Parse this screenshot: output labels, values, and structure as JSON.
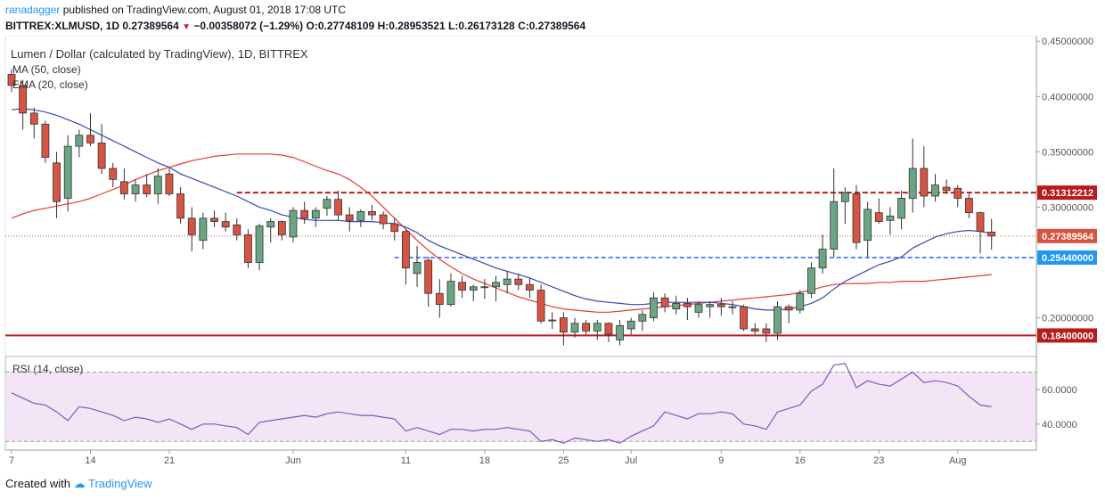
{
  "header": {
    "author": "ranadagger",
    "published_text": "published on TradingView.com, August 01, 2018 17:08 UTC",
    "symbol": "BITTREX:XLMUSD, 1D",
    "last": "0.27389564",
    "change": "−0.00358072 (−1.29%)",
    "open_label": "O:",
    "open": "0.27748109",
    "high_label": "H:",
    "high": "0.28953521",
    "low_label": "L:",
    "low": "0.26173128",
    "close_label": "C:",
    "close": "0.27389564"
  },
  "footer": {
    "created_with": "Created with",
    "brand": "TradingView"
  },
  "colors": {
    "up": "#6ba583",
    "down": "#d75442",
    "ma50": "#e53935",
    "ema20": "#3949ab",
    "rsi": "#7e57c2",
    "rsi_band": "#f3e5f5",
    "support": "#b71c1c",
    "resistance": "#b71c1c",
    "level_blue": "#2962ff",
    "level_blue_label": "#2196f3",
    "axis_text": "#555555"
  },
  "chart_data": {
    "type": "candlestick",
    "title": "Lumen / Dollar (calculated by TradingView), 1D, BITTREX",
    "series_legend": [
      "MA (50, close)",
      "EMA (20, close)"
    ],
    "ylim": [
      0.165,
      0.455
    ],
    "y_ticks": [
      {
        "v": 0.45,
        "label": "0.45000000"
      },
      {
        "v": 0.4,
        "label": "0.40000000"
      },
      {
        "v": 0.35,
        "label": "0.35000000"
      },
      {
        "v": 0.3,
        "label": "0.30000000"
      },
      {
        "v": 0.2,
        "label": "0.20000000"
      }
    ],
    "price_labels": [
      {
        "v": 0.31312212,
        "label": "0.31312212",
        "kind": "resistance"
      },
      {
        "v": 0.27389564,
        "label": "0.27389564",
        "kind": "last"
      },
      {
        "v": 0.2544,
        "label": "0.25440000",
        "kind": "blue"
      },
      {
        "v": 0.184,
        "label": "0.18400000",
        "kind": "support"
      }
    ],
    "x_ticks": [
      {
        "i": 0,
        "label": "7"
      },
      {
        "i": 7,
        "label": "14"
      },
      {
        "i": 14,
        "label": "21"
      },
      {
        "i": 25,
        "label": "Jun"
      },
      {
        "i": 35,
        "label": "11"
      },
      {
        "i": 42,
        "label": "18"
      },
      {
        "i": 49,
        "label": "25"
      },
      {
        "i": 55,
        "label": "Jul"
      },
      {
        "i": 63,
        "label": "9"
      },
      {
        "i": 70,
        "label": "16"
      },
      {
        "i": 77,
        "label": "23"
      },
      {
        "i": 84,
        "label": "Aug"
      }
    ],
    "candles": [
      [
        0.42,
        0.425,
        0.404,
        0.41
      ],
      [
        0.41,
        0.415,
        0.37,
        0.385
      ],
      [
        0.385,
        0.39,
        0.362,
        0.375
      ],
      [
        0.375,
        0.378,
        0.34,
        0.345
      ],
      [
        0.34,
        0.35,
        0.29,
        0.305
      ],
      [
        0.308,
        0.365,
        0.296,
        0.355
      ],
      [
        0.355,
        0.37,
        0.345,
        0.365
      ],
      [
        0.365,
        0.385,
        0.355,
        0.358
      ],
      [
        0.358,
        0.375,
        0.33,
        0.335
      ],
      [
        0.335,
        0.34,
        0.318,
        0.325
      ],
      [
        0.323,
        0.335,
        0.307,
        0.312
      ],
      [
        0.312,
        0.325,
        0.305,
        0.32
      ],
      [
        0.32,
        0.33,
        0.309,
        0.312
      ],
      [
        0.312,
        0.335,
        0.303,
        0.328
      ],
      [
        0.33,
        0.335,
        0.31,
        0.312
      ],
      [
        0.312,
        0.318,
        0.285,
        0.29
      ],
      [
        0.29,
        0.3,
        0.26,
        0.275
      ],
      [
        0.27,
        0.295,
        0.262,
        0.29
      ],
      [
        0.29,
        0.297,
        0.282,
        0.287
      ],
      [
        0.287,
        0.295,
        0.278,
        0.282
      ],
      [
        0.284,
        0.29,
        0.27,
        0.275
      ],
      [
        0.275,
        0.28,
        0.245,
        0.25
      ],
      [
        0.25,
        0.285,
        0.243,
        0.283
      ],
      [
        0.282,
        0.29,
        0.268,
        0.287
      ],
      [
        0.287,
        0.288,
        0.27,
        0.275
      ],
      [
        0.273,
        0.3,
        0.268,
        0.297
      ],
      [
        0.297,
        0.305,
        0.285,
        0.29
      ],
      [
        0.29,
        0.3,
        0.282,
        0.297
      ],
      [
        0.299,
        0.31,
        0.292,
        0.307
      ],
      [
        0.307,
        0.315,
        0.288,
        0.293
      ],
      [
        0.293,
        0.3,
        0.278,
        0.288
      ],
      [
        0.288,
        0.298,
        0.282,
        0.296
      ],
      [
        0.296,
        0.302,
        0.288,
        0.293
      ],
      [
        0.293,
        0.296,
        0.28,
        0.285
      ],
      [
        0.285,
        0.29,
        0.27,
        0.278
      ],
      [
        0.278,
        0.28,
        0.23,
        0.245
      ],
      [
        0.24,
        0.265,
        0.228,
        0.25
      ],
      [
        0.252,
        0.255,
        0.21,
        0.222
      ],
      [
        0.222,
        0.235,
        0.2,
        0.212
      ],
      [
        0.212,
        0.24,
        0.21,
        0.233
      ],
      [
        0.232,
        0.238,
        0.218,
        0.225
      ],
      [
        0.225,
        0.23,
        0.215,
        0.228
      ],
      [
        0.228,
        0.235,
        0.217,
        0.228
      ],
      [
        0.228,
        0.238,
        0.215,
        0.232
      ],
      [
        0.23,
        0.242,
        0.222,
        0.235
      ],
      [
        0.235,
        0.24,
        0.225,
        0.23
      ],
      [
        0.23,
        0.236,
        0.218,
        0.225
      ],
      [
        0.225,
        0.23,
        0.195,
        0.197
      ],
      [
        0.198,
        0.205,
        0.19,
        0.198
      ],
      [
        0.2,
        0.205,
        0.175,
        0.187
      ],
      [
        0.187,
        0.2,
        0.182,
        0.195
      ],
      [
        0.195,
        0.198,
        0.185,
        0.188
      ],
      [
        0.188,
        0.198,
        0.18,
        0.195
      ],
      [
        0.195,
        0.196,
        0.178,
        0.185
      ],
      [
        0.18,
        0.198,
        0.175,
        0.193
      ],
      [
        0.19,
        0.2,
        0.185,
        0.197
      ],
      [
        0.197,
        0.207,
        0.188,
        0.203
      ],
      [
        0.2,
        0.223,
        0.197,
        0.218
      ],
      [
        0.218,
        0.222,
        0.205,
        0.21
      ],
      [
        0.208,
        0.22,
        0.203,
        0.213
      ],
      [
        0.213,
        0.218,
        0.198,
        0.21
      ],
      [
        0.205,
        0.215,
        0.2,
        0.212
      ],
      [
        0.21,
        0.215,
        0.2,
        0.212
      ],
      [
        0.212,
        0.218,
        0.202,
        0.21
      ],
      [
        0.21,
        0.215,
        0.203,
        0.21
      ],
      [
        0.21,
        0.212,
        0.188,
        0.19
      ],
      [
        0.19,
        0.195,
        0.185,
        0.188
      ],
      [
        0.19,
        0.195,
        0.178,
        0.186
      ],
      [
        0.186,
        0.215,
        0.18,
        0.21
      ],
      [
        0.21,
        0.212,
        0.195,
        0.207
      ],
      [
        0.207,
        0.225,
        0.204,
        0.222
      ],
      [
        0.222,
        0.25,
        0.218,
        0.245
      ],
      [
        0.245,
        0.275,
        0.24,
        0.262
      ],
      [
        0.262,
        0.335,
        0.255,
        0.305
      ],
      [
        0.305,
        0.318,
        0.285,
        0.313
      ],
      [
        0.312,
        0.32,
        0.262,
        0.268
      ],
      [
        0.27,
        0.305,
        0.255,
        0.298
      ],
      [
        0.295,
        0.308,
        0.285,
        0.287
      ],
      [
        0.288,
        0.3,
        0.275,
        0.292
      ],
      [
        0.29,
        0.315,
        0.28,
        0.308
      ],
      [
        0.308,
        0.362,
        0.295,
        0.335
      ],
      [
        0.335,
        0.355,
        0.3,
        0.31
      ],
      [
        0.31,
        0.33,
        0.305,
        0.32
      ],
      [
        0.318,
        0.325,
        0.312,
        0.315
      ],
      [
        0.317,
        0.32,
        0.3,
        0.308
      ],
      [
        0.308,
        0.312,
        0.29,
        0.295
      ],
      [
        0.295,
        0.296,
        0.258,
        0.278
      ],
      [
        0.2775,
        0.2895,
        0.2617,
        0.2739
      ]
    ],
    "ma50": [
      0.29,
      0.294,
      0.297,
      0.299,
      0.301,
      0.303,
      0.305,
      0.308,
      0.312,
      0.316,
      0.32,
      0.325,
      0.329,
      0.333,
      0.336,
      0.339,
      0.342,
      0.344,
      0.346,
      0.347,
      0.348,
      0.348,
      0.348,
      0.348,
      0.347,
      0.345,
      0.341,
      0.337,
      0.333,
      0.33,
      0.325,
      0.318,
      0.31,
      0.3,
      0.29,
      0.28,
      0.27,
      0.261,
      0.253,
      0.246,
      0.24,
      0.235,
      0.231,
      0.227,
      0.223,
      0.219,
      0.216,
      0.213,
      0.21,
      0.208,
      0.207,
      0.206,
      0.205,
      0.205,
      0.206,
      0.207,
      0.208,
      0.209,
      0.21,
      0.211,
      0.212,
      0.213,
      0.214,
      0.215,
      0.216,
      0.217,
      0.218,
      0.219,
      0.22,
      0.221,
      0.223,
      0.225,
      0.228,
      0.23,
      0.231,
      0.231,
      0.231,
      0.232,
      0.232,
      0.233,
      0.233,
      0.233,
      0.234,
      0.235,
      0.236,
      0.237,
      0.238,
      0.239
    ],
    "ema20": [
      0.388,
      0.389,
      0.388,
      0.386,
      0.383,
      0.379,
      0.375,
      0.37,
      0.365,
      0.36,
      0.355,
      0.35,
      0.345,
      0.34,
      0.336,
      0.33,
      0.326,
      0.322,
      0.318,
      0.314,
      0.31,
      0.305,
      0.3,
      0.297,
      0.293,
      0.291,
      0.289,
      0.288,
      0.288,
      0.288,
      0.287,
      0.287,
      0.287,
      0.286,
      0.285,
      0.282,
      0.277,
      0.27,
      0.265,
      0.261,
      0.257,
      0.253,
      0.249,
      0.245,
      0.242,
      0.239,
      0.236,
      0.232,
      0.228,
      0.224,
      0.22,
      0.217,
      0.215,
      0.214,
      0.213,
      0.212,
      0.212,
      0.213,
      0.214,
      0.214,
      0.214,
      0.214,
      0.214,
      0.213,
      0.212,
      0.21,
      0.208,
      0.207,
      0.207,
      0.208,
      0.21,
      0.213,
      0.218,
      0.226,
      0.233,
      0.238,
      0.243,
      0.248,
      0.251,
      0.255,
      0.263,
      0.268,
      0.273,
      0.276,
      0.278,
      0.279,
      0.278,
      0.276
    ],
    "rsi": {
      "label": "RSI (14, close)",
      "ylim": [
        25,
        79
      ],
      "band": [
        30,
        70
      ],
      "y_ticks": [
        {
          "v": 60,
          "label": "60.0000"
        },
        {
          "v": 40,
          "label": "40.0000"
        }
      ],
      "values": [
        58,
        55,
        52,
        51,
        47,
        42,
        50,
        49,
        47,
        45,
        42,
        44,
        43,
        41,
        43,
        40,
        37,
        40,
        40,
        39,
        38,
        34,
        41,
        42,
        43,
        44,
        45,
        44,
        46,
        47,
        46,
        45,
        45,
        44,
        43,
        36,
        38,
        36,
        34,
        37,
        37,
        36,
        37,
        37,
        38,
        37,
        36,
        30,
        31,
        29,
        32,
        31,
        30,
        31,
        29,
        33,
        36,
        39,
        47,
        45,
        43,
        46,
        46,
        47,
        46,
        40,
        39,
        37,
        47,
        49,
        51,
        59,
        63,
        74,
        75,
        61,
        65,
        63,
        62,
        66,
        70,
        64,
        65,
        64,
        62,
        56,
        51,
        50
      ]
    },
    "resistance_line": {
      "v": 0.31312212,
      "from": 20
    },
    "blue_line": {
      "v": 0.2544,
      "from": 34
    },
    "support_line": {
      "v": 0.184
    }
  }
}
